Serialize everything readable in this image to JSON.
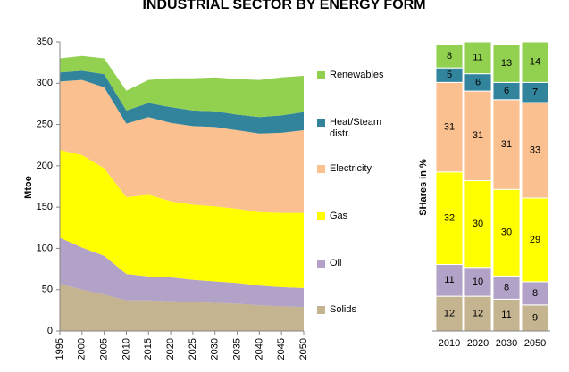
{
  "chart_data": [
    {
      "type": "area",
      "stacked": true,
      "title": "INDUSTRIAL SECTOR BY ENERGY FORM",
      "y_label": "Mtoe",
      "x": [
        1995,
        2000,
        2005,
        2010,
        2015,
        2020,
        2025,
        2030,
        2035,
        2040,
        2045,
        2050
      ],
      "xlim": [
        1995,
        2050
      ],
      "xticks": [
        1995,
        2000,
        2005,
        2010,
        2015,
        2020,
        2025,
        2030,
        2035,
        2040,
        2045,
        2050
      ],
      "ylim": [
        0,
        350
      ],
      "yticks": [
        0,
        50,
        100,
        150,
        200,
        250,
        300,
        350
      ],
      "legend": "right",
      "series": [
        {
          "name": "Solids",
          "color": "#c4b48f",
          "values": [
            57,
            50,
            44,
            37,
            37,
            36,
            35,
            34,
            33,
            31,
            30,
            29
          ]
        },
        {
          "name": "Oil",
          "color": "#b3a2c7",
          "values": [
            56,
            51,
            47,
            32,
            29,
            29,
            27,
            26,
            25,
            24,
            23,
            23
          ]
        },
        {
          "name": "Gas",
          "color": "#ffff00",
          "values": [
            106,
            112,
            106,
            93,
            99,
            92,
            91,
            91,
            90,
            89,
            90,
            91
          ]
        },
        {
          "name": "Electricity",
          "color": "#fac090",
          "values": [
            83,
            91,
            98,
            89,
            94,
            95,
            95,
            96,
            95,
            95,
            97,
            100
          ]
        },
        {
          "name": "Heat/Steam distr.",
          "color": "#31849b",
          "values": [
            11,
            11,
            16,
            16,
            17,
            19,
            19,
            19,
            19,
            20,
            21,
            22
          ]
        },
        {
          "name": "Renewables",
          "color": "#92d050",
          "values": [
            17,
            18,
            19,
            24,
            28,
            35,
            39,
            41,
            43,
            45,
            46,
            44
          ]
        }
      ]
    },
    {
      "type": "bar",
      "stacked": true,
      "y_label": "SHares in %",
      "categories": [
        "2010",
        "2020",
        "2030",
        "2050"
      ],
      "ylim": [
        0,
        100
      ],
      "series": [
        {
          "name": "Solids",
          "color": "#c4b48f",
          "values": [
            12,
            12,
            11,
            9
          ]
        },
        {
          "name": "Oil",
          "color": "#b3a2c7",
          "values": [
            11,
            10,
            8,
            8
          ]
        },
        {
          "name": "Gas",
          "color": "#ffff00",
          "values": [
            32,
            30,
            30,
            29
          ]
        },
        {
          "name": "Electricity",
          "color": "#fac090",
          "values": [
            31,
            31,
            31,
            33
          ]
        },
        {
          "name": "Heat/Steam distr.",
          "color": "#31849b",
          "values": [
            5,
            6,
            6,
            7
          ]
        },
        {
          "name": "Renewables",
          "color": "#92d050",
          "values": [
            8,
            11,
            13,
            14
          ]
        }
      ]
    }
  ]
}
